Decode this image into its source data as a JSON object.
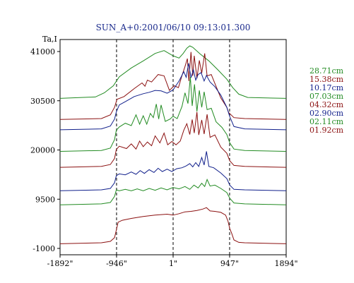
{
  "chart_data": {
    "type": "line",
    "title": "SUN_A+0:2001/06/10 09:13:01.300",
    "ylabel": "Ta,I",
    "xlim": [
      -1892,
      1894
    ],
    "ylim": [
      -1000,
      41000
    ],
    "x_ticks": [
      {
        "value": -1892,
        "label": "-1892\""
      },
      {
        "value": -946,
        "label": "-946\""
      },
      {
        "value": 1,
        "label": "1\""
      },
      {
        "value": 947,
        "label": "947\""
      },
      {
        "value": 1894,
        "label": "1894\""
      }
    ],
    "y_ticks": [
      {
        "value": 41000,
        "label": "41000"
      },
      {
        "value": 30500,
        "label": "30500"
      },
      {
        "value": 20000,
        "label": "20000"
      },
      {
        "value": 9500,
        "label": "9500"
      },
      {
        "value": -1000,
        "label": "-1000"
      }
    ],
    "reference_lines_x": [
      -946,
      1,
      947
    ],
    "series": [
      {
        "name": "28.71cm",
        "color": "#228b22",
        "offset": 31000,
        "points": [
          [
            -1892,
            0
          ],
          [
            -1300,
            300
          ],
          [
            -1150,
            1200
          ],
          [
            -1000,
            2700
          ],
          [
            -900,
            4600
          ],
          [
            -700,
            6500
          ],
          [
            -500,
            8000
          ],
          [
            -300,
            9600
          ],
          [
            -150,
            10200
          ],
          [
            0,
            9100
          ],
          [
            100,
            8600
          ],
          [
            170,
            9600
          ],
          [
            230,
            10700
          ],
          [
            280,
            11200
          ],
          [
            330,
            10900
          ],
          [
            450,
            9500
          ],
          [
            600,
            8000
          ],
          [
            750,
            6100
          ],
          [
            900,
            4100
          ],
          [
            1000,
            2300
          ],
          [
            1100,
            900
          ],
          [
            1250,
            200
          ],
          [
            1894,
            0
          ]
        ]
      },
      {
        "name": "15.38cm",
        "color": "#8b1010",
        "offset": 26500,
        "points": [
          [
            -1892,
            0
          ],
          [
            -1200,
            200
          ],
          [
            -1050,
            1000
          ],
          [
            -980,
            2600
          ],
          [
            -940,
            4300
          ],
          [
            -820,
            4900
          ],
          [
            -650,
            6600
          ],
          [
            -520,
            7800
          ],
          [
            -470,
            7100
          ],
          [
            -430,
            8400
          ],
          [
            -360,
            8000
          ],
          [
            -250,
            9600
          ],
          [
            -150,
            9300
          ],
          [
            -60,
            6200
          ],
          [
            20,
            7200
          ],
          [
            90,
            6800
          ],
          [
            150,
            9400
          ],
          [
            200,
            11300
          ],
          [
            240,
            13000
          ],
          [
            265,
            8200
          ],
          [
            300,
            14400
          ],
          [
            330,
            9300
          ],
          [
            355,
            13600
          ],
          [
            400,
            8800
          ],
          [
            440,
            12600
          ],
          [
            480,
            9900
          ],
          [
            530,
            14100
          ],
          [
            570,
            9300
          ],
          [
            640,
            9600
          ],
          [
            700,
            7700
          ],
          [
            800,
            4600
          ],
          [
            900,
            2600
          ],
          [
            930,
            1500
          ],
          [
            1020,
            400
          ],
          [
            1200,
            200
          ],
          [
            1894,
            0
          ]
        ]
      },
      {
        "name": "10.17cm",
        "color": "#101f8b",
        "offset": 24300,
        "points": [
          [
            -1892,
            0
          ],
          [
            -1200,
            200
          ],
          [
            -1050,
            800
          ],
          [
            -980,
            2300
          ],
          [
            -950,
            3800
          ],
          [
            -900,
            5300
          ],
          [
            -800,
            6000
          ],
          [
            -650,
            7100
          ],
          [
            -500,
            7700
          ],
          [
            -400,
            8000
          ],
          [
            -300,
            8400
          ],
          [
            -200,
            8300
          ],
          [
            -100,
            7800
          ],
          [
            0,
            8500
          ],
          [
            100,
            10400
          ],
          [
            180,
            12400
          ],
          [
            220,
            11200
          ],
          [
            260,
            14200
          ],
          [
            300,
            11100
          ],
          [
            340,
            12800
          ],
          [
            380,
            10600
          ],
          [
            420,
            11800
          ],
          [
            470,
            12200
          ],
          [
            520,
            10400
          ],
          [
            560,
            11600
          ],
          [
            620,
            10200
          ],
          [
            700,
            9200
          ],
          [
            800,
            7400
          ],
          [
            900,
            4800
          ],
          [
            950,
            2800
          ],
          [
            1020,
            700
          ],
          [
            1200,
            200
          ],
          [
            1894,
            0
          ]
        ]
      },
      {
        "name": "07.03cm",
        "color": "#228b22",
        "offset": 19700,
        "points": [
          [
            -1892,
            0
          ],
          [
            -1200,
            200
          ],
          [
            -1050,
            700
          ],
          [
            -980,
            2500
          ],
          [
            -950,
            4500
          ],
          [
            -900,
            5200
          ],
          [
            -800,
            6000
          ],
          [
            -700,
            5500
          ],
          [
            -620,
            7800
          ],
          [
            -560,
            5800
          ],
          [
            -500,
            7600
          ],
          [
            -440,
            5800
          ],
          [
            -380,
            8100
          ],
          [
            -330,
            7200
          ],
          [
            -280,
            10100
          ],
          [
            -240,
            6900
          ],
          [
            -200,
            9900
          ],
          [
            -130,
            6400
          ],
          [
            -50,
            6900
          ],
          [
            0,
            7500
          ],
          [
            70,
            7000
          ],
          [
            150,
            9600
          ],
          [
            200,
            12500
          ],
          [
            250,
            10200
          ],
          [
            290,
            15900
          ],
          [
            320,
            9700
          ],
          [
            360,
            14300
          ],
          [
            400,
            8500
          ],
          [
            440,
            13000
          ],
          [
            480,
            9400
          ],
          [
            520,
            12700
          ],
          [
            570,
            8900
          ],
          [
            640,
            9200
          ],
          [
            720,
            6300
          ],
          [
            820,
            5100
          ],
          [
            900,
            3600
          ],
          [
            950,
            1800
          ],
          [
            1020,
            500
          ],
          [
            1200,
            200
          ],
          [
            1894,
            0
          ]
        ]
      },
      {
        "name": "04.32cm",
        "color": "#8b1010",
        "offset": 16300,
        "points": [
          [
            -1892,
            0
          ],
          [
            -1200,
            200
          ],
          [
            -1050,
            600
          ],
          [
            -980,
            1900
          ],
          [
            -950,
            3800
          ],
          [
            -900,
            4500
          ],
          [
            -780,
            4000
          ],
          [
            -700,
            5000
          ],
          [
            -620,
            3900
          ],
          [
            -560,
            5600
          ],
          [
            -500,
            4400
          ],
          [
            -430,
            5400
          ],
          [
            -360,
            4600
          ],
          [
            -300,
            6700
          ],
          [
            -220,
            5200
          ],
          [
            -150,
            7300
          ],
          [
            -90,
            4800
          ],
          [
            -20,
            5500
          ],
          [
            50,
            4800
          ],
          [
            120,
            5600
          ],
          [
            180,
            7900
          ],
          [
            230,
            9300
          ],
          [
            280,
            7000
          ],
          [
            320,
            10200
          ],
          [
            355,
            7300
          ],
          [
            400,
            11800
          ],
          [
            430,
            6900
          ],
          [
            480,
            10100
          ],
          [
            520,
            7100
          ],
          [
            570,
            11300
          ],
          [
            620,
            6400
          ],
          [
            700,
            6900
          ],
          [
            800,
            4300
          ],
          [
            900,
            3000
          ],
          [
            950,
            1400
          ],
          [
            1020,
            400
          ],
          [
            1200,
            200
          ],
          [
            1894,
            0
          ]
        ]
      },
      {
        "name": "02.90cm",
        "color": "#101f8b",
        "offset": 11300,
        "points": [
          [
            -1892,
            0
          ],
          [
            -1200,
            200
          ],
          [
            -1050,
            500
          ],
          [
            -980,
            1700
          ],
          [
            -950,
            3200
          ],
          [
            -900,
            3600
          ],
          [
            -800,
            3400
          ],
          [
            -700,
            4000
          ],
          [
            -620,
            3500
          ],
          [
            -550,
            4300
          ],
          [
            -480,
            3700
          ],
          [
            -400,
            4500
          ],
          [
            -320,
            3900
          ],
          [
            -250,
            4800
          ],
          [
            -180,
            4100
          ],
          [
            -100,
            4600
          ],
          [
            -20,
            4100
          ],
          [
            60,
            4700
          ],
          [
            150,
            4900
          ],
          [
            220,
            5300
          ],
          [
            280,
            5800
          ],
          [
            330,
            5100
          ],
          [
            380,
            6000
          ],
          [
            430,
            5200
          ],
          [
            480,
            7100
          ],
          [
            520,
            5500
          ],
          [
            560,
            8400
          ],
          [
            600,
            5200
          ],
          [
            680,
            4900
          ],
          [
            800,
            3800
          ],
          [
            900,
            2600
          ],
          [
            950,
            1200
          ],
          [
            1020,
            300
          ],
          [
            1200,
            200
          ],
          [
            1894,
            0
          ]
        ]
      },
      {
        "name": "02.11cm",
        "color": "#228b22",
        "offset": 8300,
        "points": [
          [
            -1892,
            0
          ],
          [
            -1200,
            200
          ],
          [
            -1050,
            500
          ],
          [
            -980,
            1800
          ],
          [
            -950,
            3200
          ],
          [
            -900,
            3000
          ],
          [
            -800,
            3300
          ],
          [
            -700,
            3000
          ],
          [
            -600,
            3400
          ],
          [
            -500,
            3000
          ],
          [
            -400,
            3500
          ],
          [
            -300,
            3100
          ],
          [
            -200,
            3600
          ],
          [
            -100,
            3200
          ],
          [
            0,
            3700
          ],
          [
            100,
            3400
          ],
          [
            200,
            3900
          ],
          [
            280,
            3300
          ],
          [
            350,
            4200
          ],
          [
            420,
            3600
          ],
          [
            480,
            4600
          ],
          [
            530,
            3900
          ],
          [
            570,
            5400
          ],
          [
            620,
            4000
          ],
          [
            700,
            4200
          ],
          [
            800,
            3500
          ],
          [
            900,
            2600
          ],
          [
            950,
            1400
          ],
          [
            1020,
            400
          ],
          [
            1200,
            200
          ],
          [
            1894,
            0
          ]
        ]
      },
      {
        "name": "01.92cm",
        "color": "#8b1010",
        "offset": 0,
        "points": [
          [
            -1892,
            0
          ],
          [
            -1200,
            200
          ],
          [
            -1050,
            500
          ],
          [
            -980,
            1300
          ],
          [
            -950,
            2900
          ],
          [
            -920,
            4600
          ],
          [
            -850,
            5000
          ],
          [
            -700,
            5400
          ],
          [
            -500,
            5800
          ],
          [
            -300,
            6100
          ],
          [
            -100,
            6300
          ],
          [
            0,
            6100
          ],
          [
            100,
            6400
          ],
          [
            200,
            6800
          ],
          [
            300,
            6900
          ],
          [
            400,
            7100
          ],
          [
            500,
            7400
          ],
          [
            560,
            7700
          ],
          [
            620,
            7000
          ],
          [
            700,
            6900
          ],
          [
            800,
            6700
          ],
          [
            880,
            6100
          ],
          [
            920,
            4800
          ],
          [
            950,
            3200
          ],
          [
            980,
            2300
          ],
          [
            1020,
            800
          ],
          [
            1100,
            300
          ],
          [
            1200,
            200
          ],
          [
            1894,
            0
          ]
        ]
      }
    ]
  }
}
